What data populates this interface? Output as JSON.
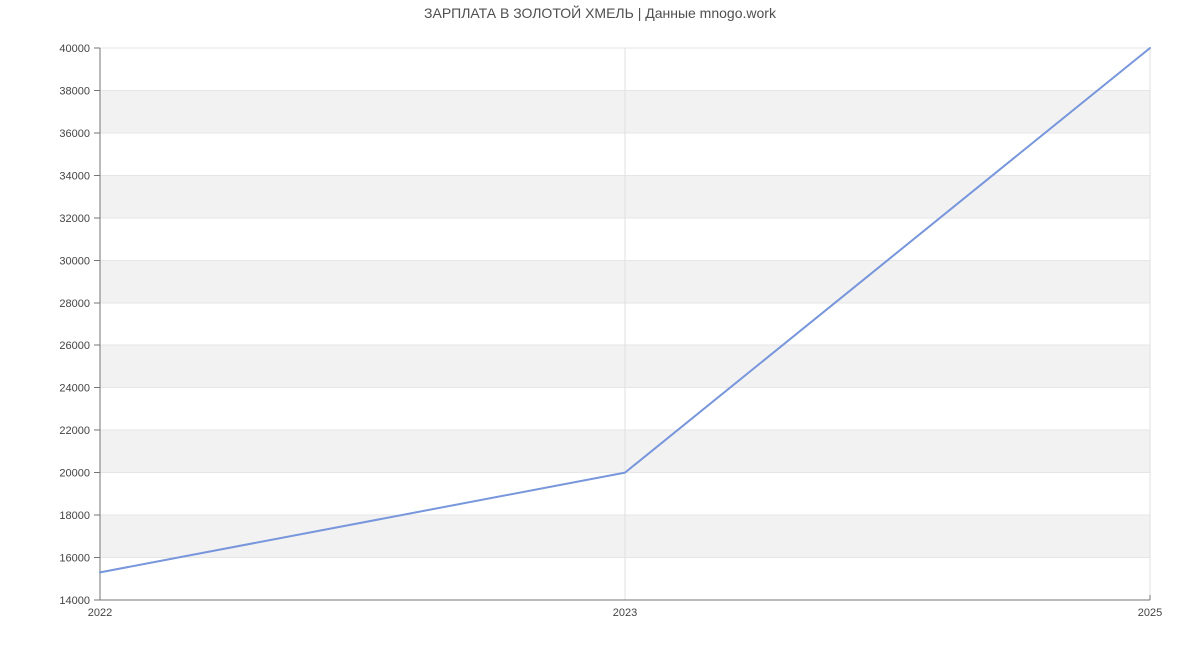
{
  "chart_data": {
    "type": "line",
    "title": "ЗАРПЛАТА В ЗОЛОТОЙ ХМЕЛЬ | Данные mnogo.work",
    "categories": [
      "2022",
      "2023",
      "2025"
    ],
    "values": [
      15300,
      20000,
      40000
    ],
    "xlabel": "",
    "ylabel": "",
    "ylim": [
      14000,
      40000
    ],
    "ytick_step": 2000,
    "yticks": [
      14000,
      16000,
      18000,
      20000,
      22000,
      24000,
      26000,
      28000,
      30000,
      32000,
      34000,
      36000,
      38000,
      40000
    ],
    "legend": "none",
    "grid": "alternating horizontal bands with light gridlines, vertical gridlines at 2023 and 2025",
    "marker": "none",
    "style": {
      "line": "#7896dc",
      "band": "#f2f2f2",
      "hgrid": "#e6e6e6",
      "vgrid": "#e0e0e0",
      "axis": "#757575",
      "label": "#444444",
      "title_color": "#4f4f4f",
      "background": "#ffffff"
    }
  }
}
